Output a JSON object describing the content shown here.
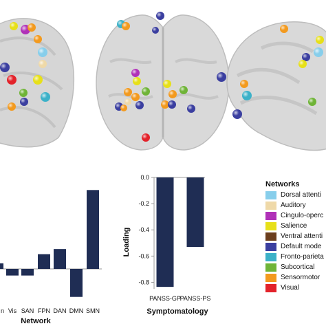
{
  "accent": "#1f2d54",
  "networks_legend": {
    "title": "Networks",
    "items": [
      {
        "label": "Dorsal attenti",
        "color": "#87ceeb"
      },
      {
        "label": "Auditory",
        "color": "#efd9a8"
      },
      {
        "label": "Cingulo-operc",
        "color": "#b031b8"
      },
      {
        "label": "Salience",
        "color": "#e7e019"
      },
      {
        "label": "Ventral attenti",
        "color": "#6b3e1c"
      },
      {
        "label": "Default mode",
        "color": "#3b3fa0"
      },
      {
        "label": "Fronto-parieta",
        "color": "#3cb1c8"
      },
      {
        "label": "Subcortical",
        "color": "#6fb437"
      },
      {
        "label": "Sensormotor",
        "color": "#f39a1e"
      },
      {
        "label": "Visual",
        "color": "#e3222a"
      }
    ]
  },
  "chart_data": [
    {
      "type": "bar",
      "categories": [
        "Vis",
        "SAN",
        "FPN",
        "DAN",
        "DMN",
        "SMN"
      ],
      "partial_categories": [
        "n"
      ],
      "values": [
        -0.13,
        -0.13,
        0.29,
        0.39,
        -0.55,
        1.55
      ],
      "partial_values": [
        0.11
      ],
      "xlabel": "Network",
      "ylabel": "",
      "color": "#1f2d54"
    },
    {
      "type": "bar",
      "categories": [
        "PANSS-GP",
        "PANSS-PS"
      ],
      "values": [
        -0.835,
        -0.53
      ],
      "ylim": [
        -0.85,
        0.0
      ],
      "yticks": [
        "0.0",
        "-0.2",
        "-0.4",
        "-0.6",
        "-0.8"
      ],
      "ytick_values": [
        0.0,
        -0.2,
        -0.4,
        -0.6,
        -0.8
      ],
      "xlabel": "Symptomatology",
      "ylabel": "Loading",
      "color": "#1f2d54"
    }
  ]
}
